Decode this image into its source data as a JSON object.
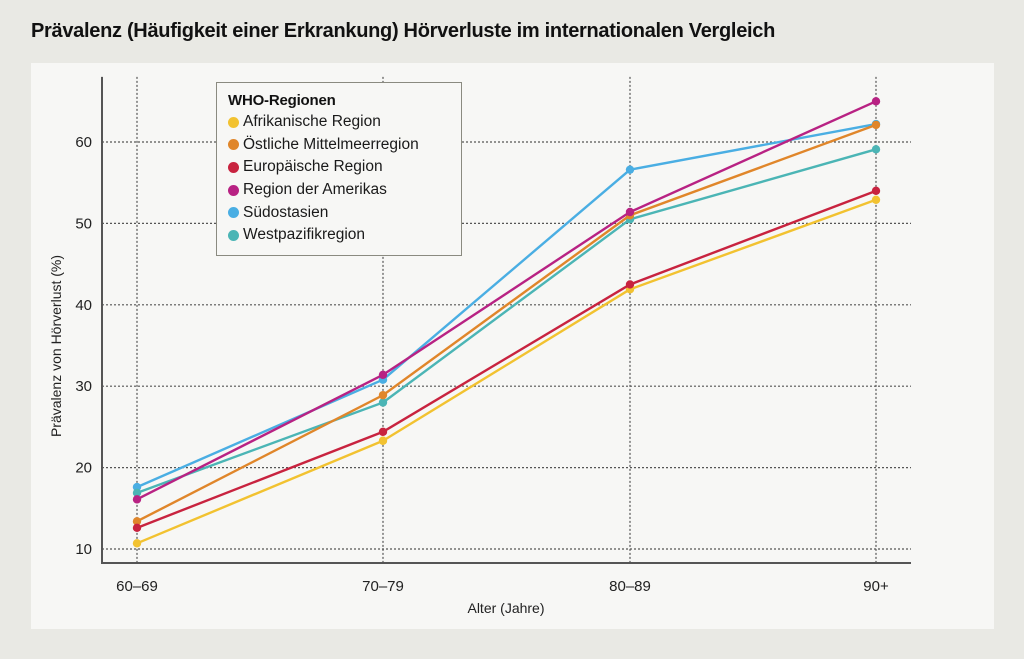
{
  "chart_data": {
    "type": "line",
    "title": "Prävalenz (Häufigkeit einer Erkrankung) Hörverluste im internationalen Vergleich",
    "xlabel": "Alter (Jahre)",
    "ylabel": "Prävalenz von Hörverlust (%)",
    "categories": [
      "60–69",
      "70–79",
      "80–89",
      "90+"
    ],
    "yticks": [
      10,
      20,
      30,
      40,
      50,
      60
    ],
    "ylim": [
      8.2,
      68
    ],
    "grid": true,
    "legend": {
      "title": "WHO-Regionen",
      "placement": "top-left"
    },
    "series": [
      {
        "name": "Afrikanische Region",
        "color": "#f2c230",
        "values": [
          10.7,
          23.3,
          41.9,
          52.9
        ]
      },
      {
        "name": "Östliche Mittelmeerregion",
        "color": "#e0862a",
        "values": [
          13.4,
          28.9,
          51.0,
          62.1
        ]
      },
      {
        "name": "Europäische Region",
        "color": "#c8233f",
        "values": [
          12.6,
          24.4,
          42.5,
          54.0
        ]
      },
      {
        "name": "Region der Amerikas",
        "color": "#b82283",
        "values": [
          16.1,
          31.4,
          51.4,
          65.0
        ]
      },
      {
        "name": "Südostasien",
        "color": "#4aaee3",
        "values": [
          17.6,
          30.8,
          56.6,
          62.2
        ]
      },
      {
        "name": "Westpazifikregion",
        "color": "#4bb5b5",
        "values": [
          16.9,
          28.0,
          50.5,
          59.1
        ]
      }
    ],
    "draw_order": [
      4,
      5,
      1,
      3,
      0,
      2
    ]
  }
}
